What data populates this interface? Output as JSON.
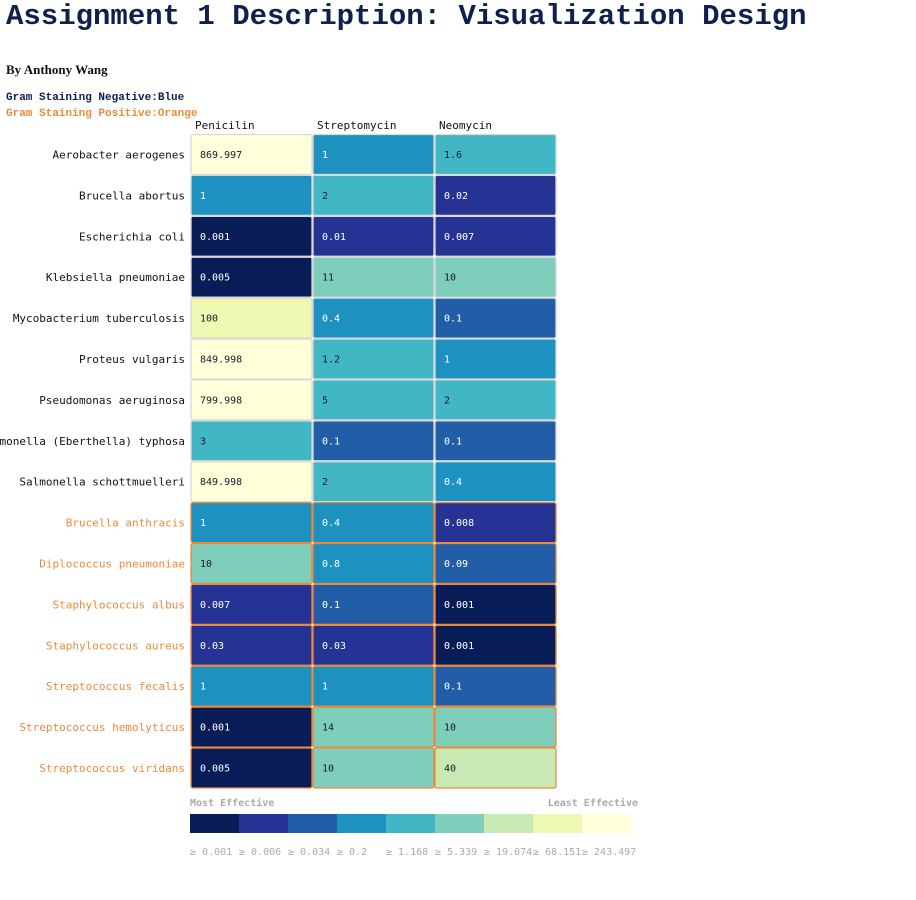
{
  "title": "Assignment 1 Description: Visualization Design",
  "byline": "By Anthony Wang",
  "gram_legend": {
    "negative": {
      "label": "Gram Staining Negative:Blue",
      "color": "#0b1f4f"
    },
    "positive": {
      "label": "Gram Staining Positive:Orange",
      "color": "#f0883a"
    }
  },
  "chart_data": {
    "type": "heatmap",
    "columns": [
      "Penicilin",
      "Streptomycin",
      "Neomycin"
    ],
    "rows": [
      {
        "name": "Aerobacter aerogenes",
        "gram": "negative",
        "values": [
          "869.997",
          "1",
          "1.6"
        ]
      },
      {
        "name": "Brucella abortus",
        "gram": "negative",
        "values": [
          "1",
          "2",
          "0.02"
        ]
      },
      {
        "name": "Escherichia coli",
        "gram": "negative",
        "values": [
          "0.001",
          "0.01",
          "0.007"
        ]
      },
      {
        "name": "Klebsiella pneumoniae",
        "gram": "negative",
        "values": [
          "0.005",
          "11",
          "10"
        ]
      },
      {
        "name": "Mycobacterium tuberculosis",
        "gram": "negative",
        "values": [
          "100",
          "0.4",
          "0.1"
        ]
      },
      {
        "name": "Proteus vulgaris",
        "gram": "negative",
        "values": [
          "849.998",
          "1.2",
          "1"
        ]
      },
      {
        "name": "Pseudomonas aeruginosa",
        "gram": "negative",
        "values": [
          "799.998",
          "5",
          "2"
        ]
      },
      {
        "name": "lmonella (Eberthella) typhosa",
        "gram": "negative",
        "values": [
          "3",
          "0.1",
          "0.1"
        ]
      },
      {
        "name": "Salmonella schottmuelleri",
        "gram": "negative",
        "values": [
          "849.998",
          "2",
          "0.4"
        ]
      },
      {
        "name": "Brucella anthracis",
        "gram": "positive",
        "values": [
          "1",
          "0.4",
          "0.008"
        ]
      },
      {
        "name": "Diplococcus pneumoniae",
        "gram": "positive",
        "values": [
          "10",
          "0.8",
          "0.09"
        ]
      },
      {
        "name": "Staphylococcus albus",
        "gram": "positive",
        "values": [
          "0.007",
          "0.1",
          "0.001"
        ]
      },
      {
        "name": "Staphylococcus aureus",
        "gram": "positive",
        "values": [
          "0.03",
          "0.03",
          "0.001"
        ]
      },
      {
        "name": "Streptococcus fecalis",
        "gram": "positive",
        "values": [
          "1",
          "1",
          "0.1"
        ]
      },
      {
        "name": "Streptococcus hemolyticus",
        "gram": "positive",
        "values": [
          "0.001",
          "14",
          "10"
        ]
      },
      {
        "name": "Streptococcus viridans",
        "gram": "positive",
        "values": [
          "0.005",
          "10",
          "40"
        ]
      }
    ],
    "color_scale": {
      "label_low": "Most Effective",
      "label_high": "Least Effective",
      "thresholds": [
        0.001,
        0.006,
        0.034,
        0.2,
        1.168,
        5.339,
        19.074,
        68.151,
        243.497
      ],
      "tick_labels": [
        "≥ 0.001",
        "≥ 0.006",
        "≥ 0.034",
        "≥ 0.2",
        "≥ 1.168",
        "≥ 5.339",
        "≥ 19.074",
        "≥ 68.151",
        "≥ 243.497"
      ],
      "colors": [
        "#081d58",
        "#253494",
        "#225ea8",
        "#1d91c0",
        "#41b6c4",
        "#7fcdbb",
        "#c7e9b4",
        "#edf8b1",
        "#ffffd9"
      ]
    }
  }
}
